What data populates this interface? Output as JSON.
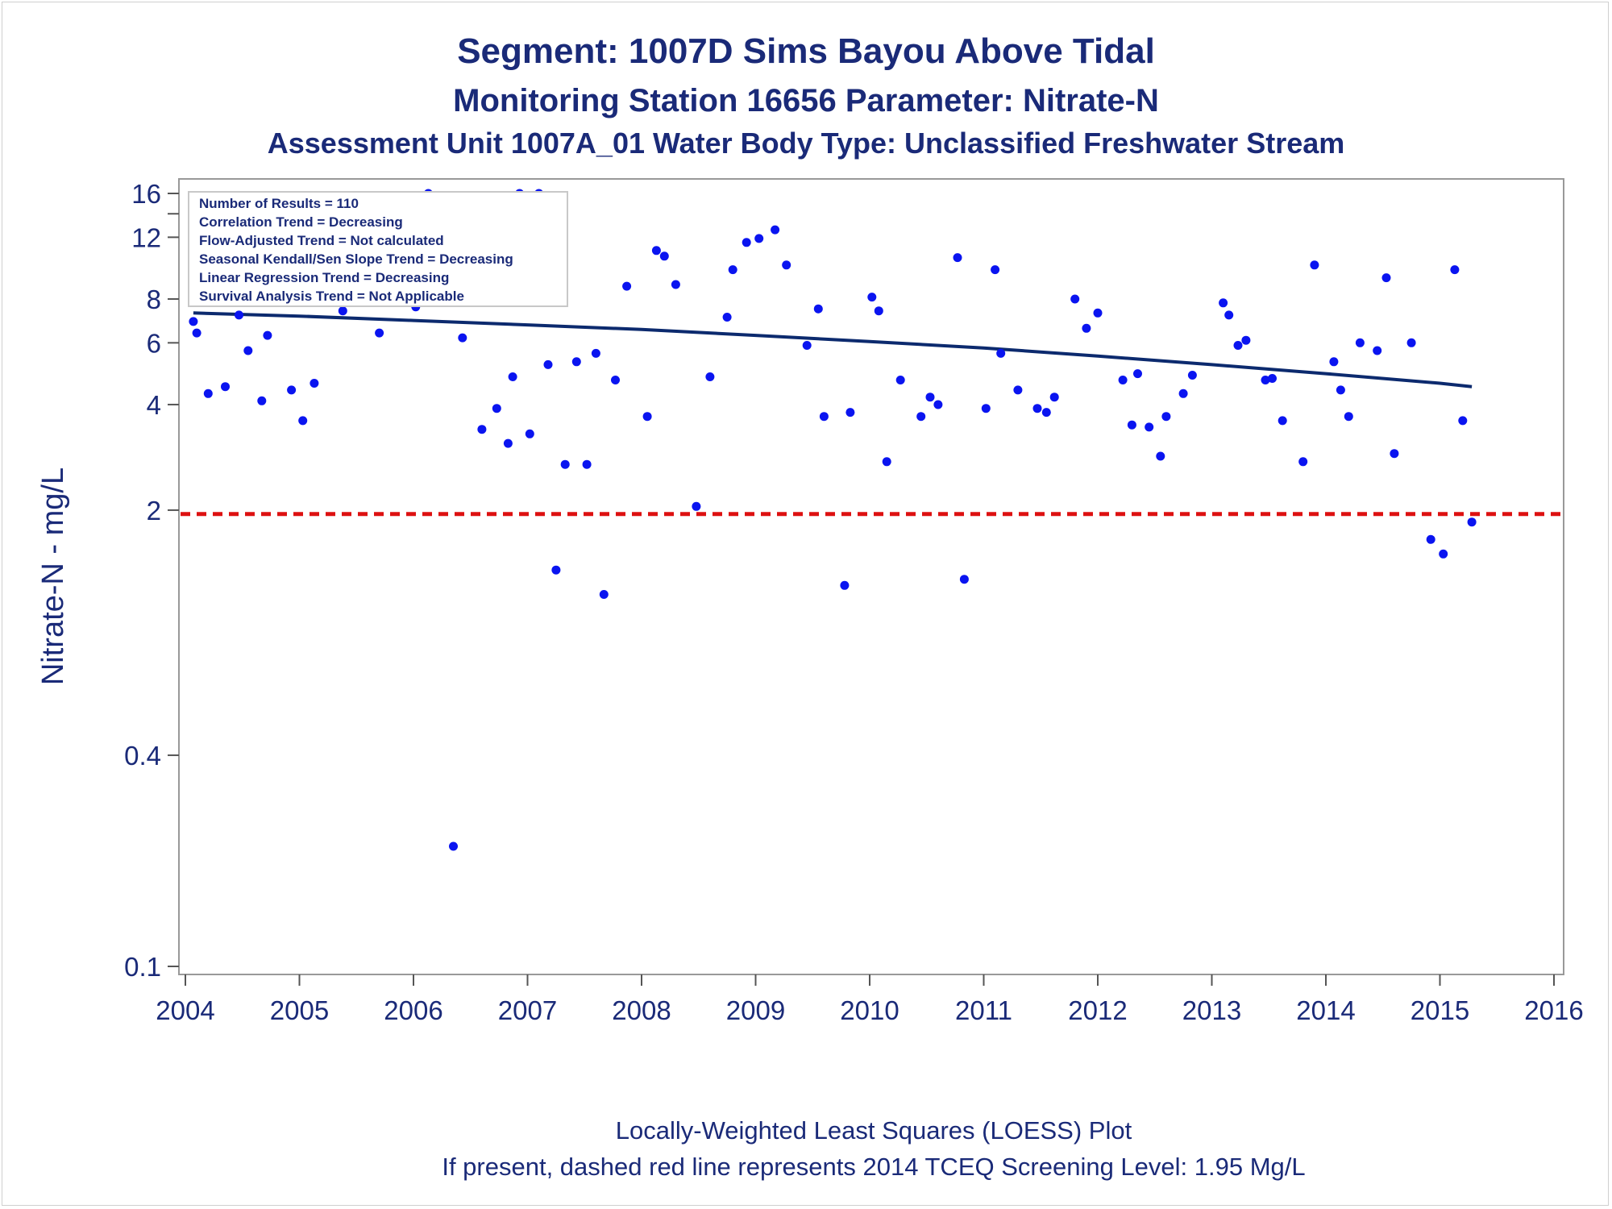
{
  "chart_data": {
    "type": "scatter",
    "title": "Segment: 1007D  Sims Bayou Above Tidal",
    "subtitle": "Monitoring Station 16656 Parameter: Nitrate-N",
    "subtitle2": "Assessment Unit 1007A_01   Water Body Type: Unclassified Freshwater Stream",
    "ylabel": "Nitrate-N - mg/L",
    "xlabel": "",
    "y_scale": "log",
    "xlim": [
      2004,
      2016
    ],
    "ylim": [
      0.1,
      17
    ],
    "x_ticks": [
      2004,
      2005,
      2006,
      2007,
      2008,
      2009,
      2010,
      2011,
      2012,
      2013,
      2014,
      2015,
      2016
    ],
    "y_ticks": [
      0.1,
      0.4,
      2,
      4,
      6,
      8,
      12,
      16
    ],
    "y_tick_labels": [
      "0.1",
      "0.4",
      "2",
      "4",
      "6",
      "8",
      "12",
      "16"
    ],
    "y_minor_ticks": [
      14
    ],
    "grid": false,
    "stats_box": {
      "placement": "top-left",
      "lines": [
        "Number of Results = 110",
        "Correlation Trend = Decreasing",
        "Flow-Adjusted Trend = Not calculated",
        "Seasonal Kendall/Sen Slope Trend = Decreasing",
        "Linear Regression Trend = Decreasing",
        "Survival Analysis Trend = Not Applicable"
      ]
    },
    "series": [
      {
        "type": "scatter",
        "color": "#0a14f0",
        "points": [
          [
            2004.07,
            6.9
          ],
          [
            2004.1,
            6.4
          ],
          [
            2004.2,
            4.3
          ],
          [
            2004.3,
            9.8
          ],
          [
            2004.35,
            4.5
          ],
          [
            2004.47,
            7.2
          ],
          [
            2004.55,
            5.7
          ],
          [
            2004.67,
            4.1
          ],
          [
            2004.72,
            6.3
          ],
          [
            2004.77,
            7.9
          ],
          [
            2004.88,
            8.3
          ],
          [
            2004.93,
            4.4
          ],
          [
            2005.03,
            3.6
          ],
          [
            2005.13,
            4.6
          ],
          [
            2005.23,
            9.9
          ],
          [
            2005.32,
            14.6
          ],
          [
            2005.38,
            7.4
          ],
          [
            2005.7,
            6.4
          ],
          [
            2005.8,
            10.3
          ],
          [
            2005.87,
            8.8
          ],
          [
            2005.93,
            10.4
          ],
          [
            2006.02,
            7.6
          ],
          [
            2006.13,
            16.0
          ],
          [
            2006.17,
            9.9
          ],
          [
            2006.27,
            8.8
          ],
          [
            2006.35,
            0.22
          ],
          [
            2006.43,
            6.2
          ],
          [
            2006.55,
            9.8
          ],
          [
            2006.6,
            3.4
          ],
          [
            2006.73,
            3.9
          ],
          [
            2006.83,
            3.1
          ],
          [
            2006.87,
            4.8
          ],
          [
            2006.93,
            16.0
          ],
          [
            2007.02,
            3.3
          ],
          [
            2007.1,
            16.0
          ],
          [
            2007.18,
            5.2
          ],
          [
            2007.25,
            1.35
          ],
          [
            2007.33,
            2.7
          ],
          [
            2007.43,
            5.3
          ],
          [
            2007.52,
            2.7
          ],
          [
            2007.6,
            5.6
          ],
          [
            2007.67,
            1.15
          ],
          [
            2007.77,
            4.7
          ],
          [
            2007.87,
            8.7
          ],
          [
            2008.05,
            3.7
          ],
          [
            2008.13,
            11.0
          ],
          [
            2008.2,
            10.6
          ],
          [
            2008.3,
            8.8
          ],
          [
            2008.48,
            2.05
          ],
          [
            2008.6,
            4.8
          ],
          [
            2008.75,
            7.1
          ],
          [
            2008.8,
            9.7
          ],
          [
            2008.92,
            11.6
          ],
          [
            2009.03,
            11.9
          ],
          [
            2009.17,
            12.6
          ],
          [
            2009.27,
            10.0
          ],
          [
            2009.45,
            5.9
          ],
          [
            2009.55,
            7.5
          ],
          [
            2009.6,
            3.7
          ],
          [
            2009.78,
            1.22
          ],
          [
            2009.83,
            3.8
          ],
          [
            2010.02,
            8.1
          ],
          [
            2010.08,
            7.4
          ],
          [
            2010.15,
            2.75
          ],
          [
            2010.27,
            4.7
          ],
          [
            2010.45,
            3.7
          ],
          [
            2010.53,
            4.2
          ],
          [
            2010.6,
            4.0
          ],
          [
            2010.77,
            10.5
          ],
          [
            2010.83,
            1.27
          ],
          [
            2011.02,
            3.9
          ],
          [
            2011.1,
            9.7
          ],
          [
            2011.15,
            5.6
          ],
          [
            2011.3,
            4.4
          ],
          [
            2011.47,
            3.9
          ],
          [
            2011.55,
            3.8
          ],
          [
            2011.62,
            4.2
          ],
          [
            2011.8,
            8.0
          ],
          [
            2011.9,
            6.6
          ],
          [
            2012.0,
            7.3
          ],
          [
            2012.22,
            4.7
          ],
          [
            2012.3,
            3.5
          ],
          [
            2012.35,
            4.9
          ],
          [
            2012.45,
            3.45
          ],
          [
            2012.55,
            2.85
          ],
          [
            2012.6,
            3.7
          ],
          [
            2012.75,
            4.3
          ],
          [
            2012.83,
            4.85
          ],
          [
            2013.1,
            7.8
          ],
          [
            2013.15,
            7.2
          ],
          [
            2013.23,
            5.9
          ],
          [
            2013.3,
            6.1
          ],
          [
            2013.47,
            4.7
          ],
          [
            2013.53,
            4.75
          ],
          [
            2013.62,
            3.6
          ],
          [
            2013.8,
            2.75
          ],
          [
            2013.9,
            10.0
          ],
          [
            2014.07,
            5.3
          ],
          [
            2014.13,
            4.4
          ],
          [
            2014.2,
            3.7
          ],
          [
            2014.3,
            6.0
          ],
          [
            2014.45,
            5.7
          ],
          [
            2014.53,
            9.2
          ],
          [
            2014.6,
            2.9
          ],
          [
            2014.75,
            6.0
          ],
          [
            2014.92,
            1.65
          ],
          [
            2015.03,
            1.5
          ],
          [
            2015.13,
            9.7
          ],
          [
            2015.2,
            3.6
          ],
          [
            2015.28,
            1.85
          ]
        ]
      },
      {
        "type": "line",
        "color": "#0c2a6e",
        "points": [
          [
            2004.07,
            7.3
          ],
          [
            2005.0,
            7.15
          ],
          [
            2006.0,
            6.95
          ],
          [
            2007.0,
            6.75
          ],
          [
            2008.0,
            6.55
          ],
          [
            2009.0,
            6.3
          ],
          [
            2010.0,
            6.05
          ],
          [
            2011.0,
            5.8
          ],
          [
            2012.0,
            5.5
          ],
          [
            2013.0,
            5.2
          ],
          [
            2014.0,
            4.9
          ],
          [
            2015.0,
            4.6
          ],
          [
            2015.28,
            4.5
          ]
        ]
      }
    ],
    "reference_line": {
      "y": 1.95,
      "color": "#dd1111",
      "style": "dashed"
    },
    "footer": [
      "Locally-Weighted Least Squares (LOESS) Plot",
      "If present, dashed red line represents 2014 TCEQ Screening Level: 1.95 Mg/L"
    ]
  }
}
